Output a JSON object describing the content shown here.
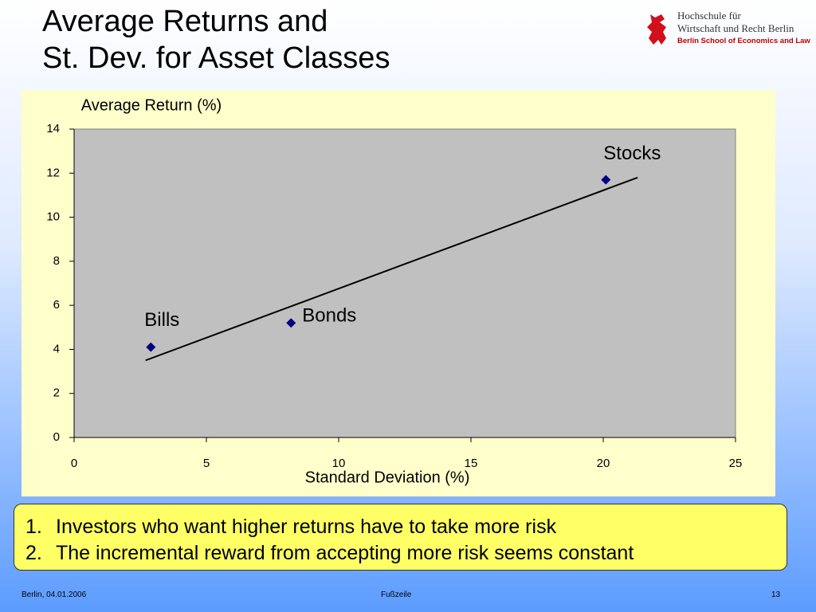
{
  "slide": {
    "title_lines": [
      "Average Returns and",
      "St. Dev. for Asset Classes"
    ],
    "logo_lines": [
      "Hochschule für",
      "Wirtschaft und Recht Berlin",
      "Berlin School of Economics and Law"
    ],
    "items": [
      {
        "number": "1.",
        "text": "Investors who want higher returns have to take more risk"
      },
      {
        "number": "2.",
        "text": "The incremental reward from accepting more risk seems constant"
      }
    ],
    "footer": {
      "left": "Berlin, 04.01.2006",
      "center": "Fußzeile",
      "right": "13"
    }
  },
  "chart_data": {
    "type": "scatter",
    "ylabel": "Average Return (%)",
    "xlabel": "Standard Deviation (%)",
    "x": [
      2.9,
      8.2,
      20.1
    ],
    "values": [
      4.1,
      5.2,
      11.7
    ],
    "point_labels": [
      "Bills",
      "Bonds",
      "Stocks"
    ],
    "color": "#000080",
    "trendline": {
      "x": [
        2.7,
        21.3
      ],
      "values": [
        3.5,
        11.8
      ],
      "color": "#000000"
    },
    "xlim": [
      0,
      25
    ],
    "xticks": [
      0,
      5,
      10,
      15,
      20,
      25
    ],
    "ylim": [
      0,
      14
    ],
    "yticks": [
      0,
      2,
      4,
      6,
      8,
      10,
      12,
      14
    ]
  }
}
